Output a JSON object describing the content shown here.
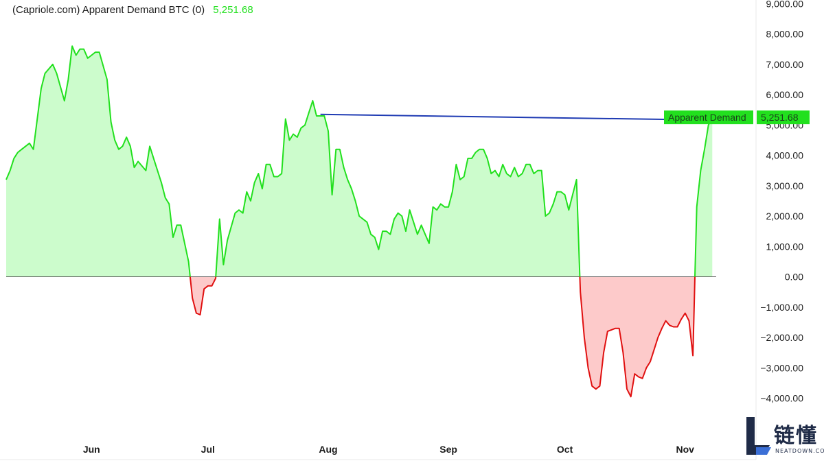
{
  "header": {
    "title": "(Capriole.com) Apparent Demand BTC (0)",
    "value": "5,251.68"
  },
  "label": {
    "name": "Apparent Demand",
    "value": "5,251.68"
  },
  "colors": {
    "positive_line": "#22e01e",
    "positive_fill": "#ccfccc",
    "negative_line": "#e01010",
    "negative_fill": "#fdcaca",
    "trend_line": "#1f3bb3",
    "label_bg": "#22e01e",
    "zero_line": "#555555"
  },
  "logo": {
    "cn": "链懂",
    "en": "NEATDOWN.COM"
  },
  "chart_data": {
    "type": "area",
    "title": "(Capriole.com) Apparent Demand BTC (0)",
    "ylim": [
      -5000,
      9000
    ],
    "y_ticks": [
      9000,
      8000,
      7000,
      6000,
      5000,
      4000,
      3000,
      2000,
      1000,
      0,
      -1000,
      -2000,
      -3000,
      -4000
    ],
    "y_tick_labels": [
      "9,000.00",
      "8,000.00",
      "7,000.00",
      "6,000.00",
      "5,000.00",
      "4,000.00",
      "3,000.00",
      "2,000.00",
      "1,000.00",
      "0.00",
      "−1,000.00",
      "−2,000.00",
      "−3,000.00",
      "−4,000.00"
    ],
    "x_ticks": [
      {
        "label": "Jun",
        "day": 22
      },
      {
        "label": "Jul",
        "day": 52
      },
      {
        "label": "Aug",
        "day": 83
      },
      {
        "label": "Sep",
        "day": 114
      },
      {
        "label": "Oct",
        "day": 144
      },
      {
        "label": "Nov",
        "day": 175
      }
    ],
    "grid": false,
    "series": [
      {
        "name": "Apparent Demand",
        "points": [
          [
            0,
            3200
          ],
          [
            1,
            3500
          ],
          [
            2,
            3900
          ],
          [
            3,
            4100
          ],
          [
            4,
            4200
          ],
          [
            6,
            4400
          ],
          [
            7,
            4200
          ],
          [
            9,
            6200
          ],
          [
            10,
            6700
          ],
          [
            12,
            7000
          ],
          [
            13,
            6700
          ],
          [
            15,
            5800
          ],
          [
            16,
            6500
          ],
          [
            17,
            7600
          ],
          [
            18,
            7300
          ],
          [
            19,
            7500
          ],
          [
            20,
            7500
          ],
          [
            21,
            7200
          ],
          [
            22,
            7300
          ],
          [
            23,
            7400
          ],
          [
            24,
            7400
          ],
          [
            26,
            6500
          ],
          [
            27,
            5100
          ],
          [
            28,
            4500
          ],
          [
            29,
            4200
          ],
          [
            30,
            4300
          ],
          [
            31,
            4600
          ],
          [
            32,
            4300
          ],
          [
            33,
            3600
          ],
          [
            34,
            3800
          ],
          [
            36,
            3500
          ],
          [
            37,
            4300
          ],
          [
            38,
            3900
          ],
          [
            40,
            3100
          ],
          [
            41,
            2600
          ],
          [
            42,
            2400
          ],
          [
            43,
            1300
          ],
          [
            44,
            1700
          ],
          [
            45,
            1700
          ],
          [
            47,
            500
          ],
          [
            48,
            -700
          ],
          [
            49,
            -1200
          ],
          [
            50,
            -1250
          ],
          [
            51,
            -400
          ],
          [
            52,
            -300
          ],
          [
            53,
            -300
          ],
          [
            54,
            -50
          ],
          [
            55,
            1900
          ],
          [
            56,
            400
          ],
          [
            57,
            1200
          ],
          [
            59,
            2100
          ],
          [
            60,
            2200
          ],
          [
            61,
            2100
          ],
          [
            62,
            2800
          ],
          [
            63,
            2500
          ],
          [
            64,
            3100
          ],
          [
            65,
            3400
          ],
          [
            66,
            2900
          ],
          [
            67,
            3700
          ],
          [
            68,
            3700
          ],
          [
            69,
            3300
          ],
          [
            70,
            3300
          ],
          [
            71,
            3400
          ],
          [
            72,
            5200
          ],
          [
            73,
            4500
          ],
          [
            74,
            4700
          ],
          [
            75,
            4600
          ],
          [
            76,
            4900
          ],
          [
            77,
            5000
          ],
          [
            78,
            5400
          ],
          [
            79,
            5800
          ],
          [
            80,
            5300
          ],
          [
            81,
            5300
          ],
          [
            82,
            5300
          ],
          [
            83,
            4800
          ],
          [
            84,
            2700
          ],
          [
            85,
            4200
          ],
          [
            86,
            4200
          ],
          [
            87,
            3600
          ],
          [
            88,
            3200
          ],
          [
            89,
            2900
          ],
          [
            90,
            2500
          ],
          [
            91,
            2000
          ],
          [
            93,
            1800
          ],
          [
            94,
            1400
          ],
          [
            95,
            1300
          ],
          [
            96,
            900
          ],
          [
            97,
            1500
          ],
          [
            98,
            1500
          ],
          [
            99,
            1400
          ],
          [
            100,
            1900
          ],
          [
            101,
            2100
          ],
          [
            102,
            2000
          ],
          [
            103,
            1500
          ],
          [
            104,
            2200
          ],
          [
            105,
            1800
          ],
          [
            106,
            1400
          ],
          [
            107,
            1700
          ],
          [
            108,
            1400
          ],
          [
            109,
            1100
          ],
          [
            110,
            2300
          ],
          [
            111,
            2200
          ],
          [
            112,
            2400
          ],
          [
            113,
            2300
          ],
          [
            114,
            2300
          ],
          [
            115,
            2800
          ],
          [
            116,
            3700
          ],
          [
            117,
            3200
          ],
          [
            118,
            3300
          ],
          [
            119,
            3900
          ],
          [
            120,
            3900
          ],
          [
            121,
            4100
          ],
          [
            122,
            4200
          ],
          [
            123,
            4200
          ],
          [
            124,
            3900
          ],
          [
            125,
            3400
          ],
          [
            126,
            3500
          ],
          [
            127,
            3300
          ],
          [
            128,
            3700
          ],
          [
            129,
            3400
          ],
          [
            130,
            3300
          ],
          [
            131,
            3600
          ],
          [
            132,
            3300
          ],
          [
            133,
            3400
          ],
          [
            134,
            3700
          ],
          [
            135,
            3700
          ],
          [
            136,
            3400
          ],
          [
            137,
            3500
          ],
          [
            138,
            3500
          ],
          [
            139,
            2000
          ],
          [
            140,
            2100
          ],
          [
            141,
            2400
          ],
          [
            142,
            2800
          ],
          [
            143,
            2800
          ],
          [
            144,
            2700
          ],
          [
            145,
            2200
          ],
          [
            146,
            2700
          ],
          [
            147,
            3200
          ],
          [
            148,
            -500
          ],
          [
            149,
            -2000
          ],
          [
            150,
            -3000
          ],
          [
            151,
            -3600
          ],
          [
            152,
            -3700
          ],
          [
            153,
            -3600
          ],
          [
            154,
            -2500
          ],
          [
            155,
            -1800
          ],
          [
            156,
            -1750
          ],
          [
            157,
            -1700
          ],
          [
            158,
            -1700
          ],
          [
            159,
            -2500
          ],
          [
            160,
            -3700
          ],
          [
            161,
            -3950
          ],
          [
            162,
            -3200
          ],
          [
            163,
            -3300
          ],
          [
            164,
            -3350
          ],
          [
            165,
            -3000
          ],
          [
            166,
            -2800
          ],
          [
            167,
            -2400
          ],
          [
            168,
            -2000
          ],
          [
            169,
            -1700
          ],
          [
            170,
            -1450
          ],
          [
            171,
            -1600
          ],
          [
            172,
            -1650
          ],
          [
            173,
            -1650
          ],
          [
            174,
            -1400
          ],
          [
            175,
            -1200
          ],
          [
            176,
            -1450
          ],
          [
            177,
            -2600
          ],
          [
            178,
            2300
          ],
          [
            179,
            3500
          ],
          [
            180,
            4200
          ],
          [
            181,
            5000
          ],
          [
            182,
            5251.68
          ]
        ]
      }
    ],
    "trend_line": {
      "x0": 81,
      "y0": 5350,
      "x1": 183,
      "y1": 5160
    }
  }
}
